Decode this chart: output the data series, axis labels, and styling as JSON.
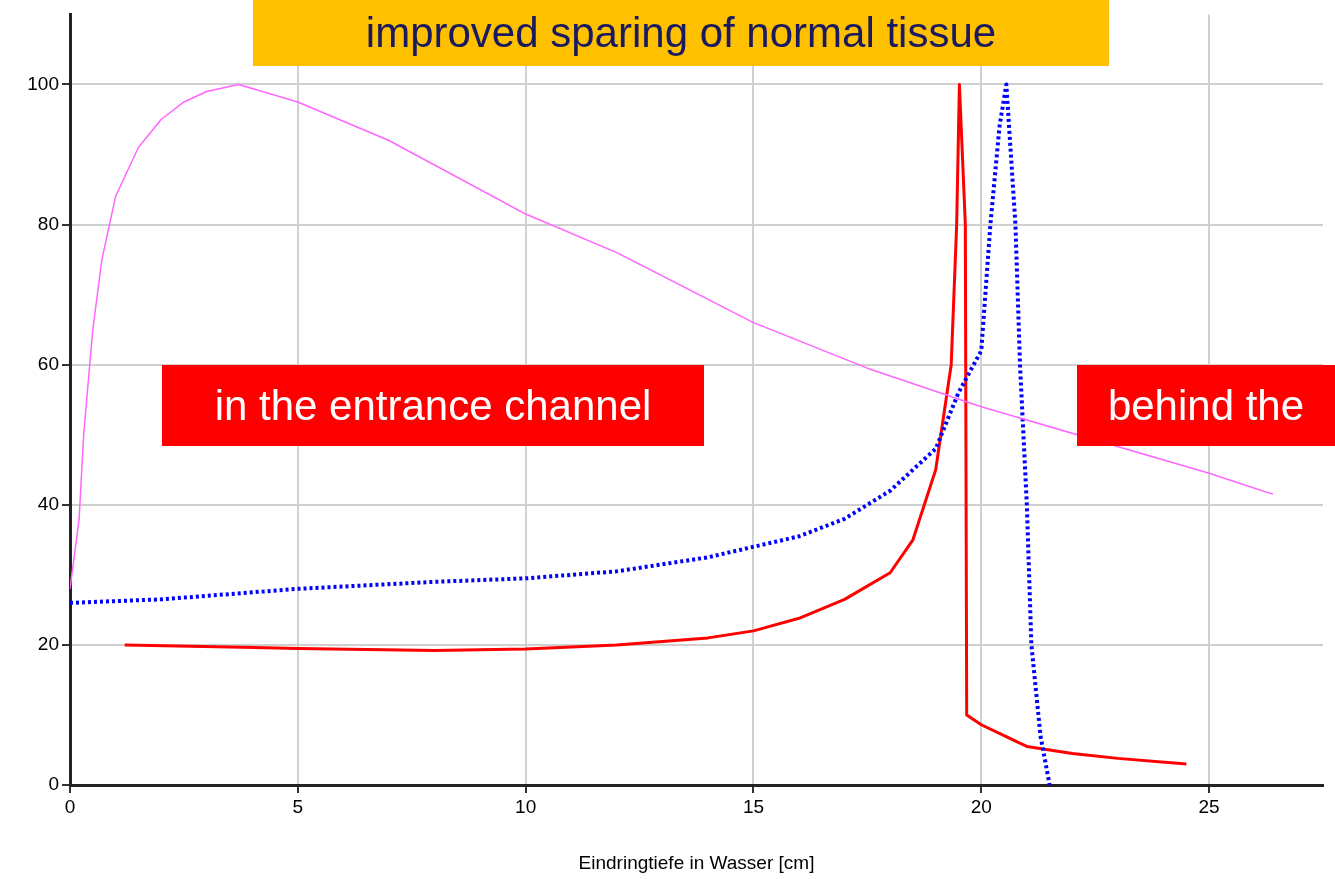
{
  "chart_data": {
    "type": "line",
    "xlabel": "Eindringtiefe in Wasser [cm]",
    "annotations": [
      "improved sparing of normal tissue",
      "in the entrance channel",
      "behind the"
    ],
    "xlim": [
      0,
      27.5
    ],
    "ylim": [
      0,
      110
    ],
    "xticks": [
      0,
      5,
      10,
      15,
      20,
      25
    ],
    "yticks": [
      0,
      20,
      40,
      60,
      80,
      100
    ],
    "grid": true,
    "legend": false,
    "marker": "none",
    "series": [
      {
        "color": "#ff66ff",
        "line_style": "solid",
        "x": [
          0,
          0.2,
          0.3,
          0.5,
          0.7,
          1.0,
          1.5,
          2,
          2.5,
          3,
          3.7,
          5,
          7,
          10,
          12,
          15,
          17.5,
          20,
          25,
          26.4
        ],
        "values": [
          28,
          38,
          50,
          65,
          75,
          84,
          91,
          95,
          97.5,
          99,
          100,
          97.5,
          92,
          81.5,
          76,
          66,
          59.5,
          54,
          44.5,
          41.5
        ]
      },
      {
        "color": "#0000ff",
        "line_style": "dotted",
        "x": [
          0,
          2,
          5,
          8,
          10,
          12,
          14,
          15,
          16,
          17,
          18,
          18.5,
          19,
          19.5,
          20,
          20.2,
          20.4,
          20.55,
          20.75,
          20.85,
          21.0,
          21.1,
          21.3,
          21.5
        ],
        "values": [
          26,
          26.5,
          28,
          29,
          29.5,
          30.5,
          32.5,
          34,
          35.5,
          38,
          42,
          45,
          48,
          56,
          62,
          80,
          94,
          100,
          80,
          60,
          40,
          20,
          7,
          0
        ]
      },
      {
        "color": "#ff0000",
        "line_style": "solid",
        "x": [
          1.2,
          5,
          8,
          10,
          12,
          14,
          15,
          16,
          17,
          18,
          18.5,
          19,
          19.34,
          19.46,
          19.52,
          19.65,
          19.68,
          20,
          21,
          22,
          23,
          24.5
        ],
        "values": [
          20,
          19.5,
          19.2,
          19.4,
          20,
          21,
          22,
          23.8,
          26.5,
          30.3,
          35,
          45,
          60,
          80,
          100,
          80,
          10,
          8.6,
          5.5,
          4.5,
          3.8,
          3
        ]
      }
    ]
  }
}
